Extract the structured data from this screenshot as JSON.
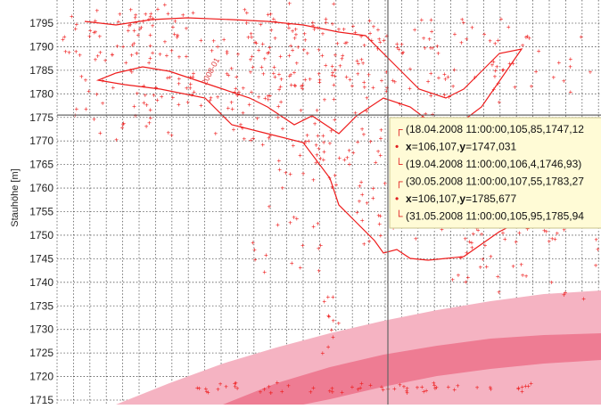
{
  "chart_data": {
    "type": "scatter",
    "ylabel": "Stauhöhe [m]",
    "ylim": [
      1714,
      1798
    ],
    "yticks": [
      1715,
      1720,
      1725,
      1730,
      1735,
      1740,
      1745,
      1750,
      1755,
      1760,
      1765,
      1770,
      1775,
      1780,
      1785,
      1790,
      1795
    ],
    "grid": true,
    "colors": {
      "series": "#ee1c1c",
      "band_outer": "#f5b3c2",
      "band_inner": "#ee7c93",
      "tooltip_bg": "#fffbd6",
      "tooltip_border": "#c9c38c"
    },
    "series": [
      {
        "style": "markers+line",
        "note_points": [
          [
            1,
            1795
          ],
          [
            3,
            1794.5
          ],
          [
            5,
            1795.5
          ],
          [
            7,
            1793
          ],
          [
            9,
            1794
          ],
          [
            11,
            1792
          ],
          [
            13,
            1794.5
          ],
          [
            15,
            1791
          ],
          [
            17,
            1790
          ],
          [
            19,
            1785
          ],
          [
            21,
            1783
          ],
          [
            23,
            1781
          ],
          [
            25,
            1778
          ],
          [
            27,
            1779
          ],
          [
            29,
            1776
          ],
          [
            31,
            1775
          ],
          [
            33,
            1772
          ],
          [
            35,
            1768
          ],
          [
            37,
            1765
          ],
          [
            39,
            1762
          ],
          [
            41,
            1758
          ],
          [
            43,
            1752
          ],
          [
            45,
            1749
          ],
          [
            47,
            1747
          ],
          [
            49,
            1746
          ],
          [
            51,
            1748
          ],
          [
            53,
            1750
          ],
          [
            55,
            1752
          ]
        ]
      }
    ],
    "bands": [
      {
        "lower": [
          1712,
          1716,
          1720,
          1724,
          1728,
          1731,
          1733,
          1735,
          1736,
          1737,
          1737.5,
          1738
        ],
        "upper": [
          1712,
          1716,
          1720,
          1724,
          1728,
          1731,
          1733,
          1735,
          1736,
          1737,
          1737.5,
          1738
        ]
      }
    ],
    "cursor": {
      "y": 1775.5
    },
    "tooltip": [
      {
        "bracket": "┌",
        "text": "(18.04.2008 11:00:00,105,85,1747,12"
      },
      {
        "bracket": "•",
        "xlabel": "x",
        "xval": "=106,107,",
        "ylabel": "y",
        "yval": "=1747,031"
      },
      {
        "bracket": "└",
        "text": "(19.04.2008 11:00:00,106,4,1746,93)"
      },
      {
        "bracket": "┌",
        "text": "(30.05.2008 11:00:00,107,55,1783,27"
      },
      {
        "bracket": "•",
        "xlabel": "x",
        "xval": "=106,107,",
        "ylabel": "y",
        "yval": "=1785,677"
      },
      {
        "bracket": "└",
        "text": "(31.05.2008 11:00:00,105,95,1785,94"
      }
    ],
    "rotated_label": "2008-01"
  }
}
